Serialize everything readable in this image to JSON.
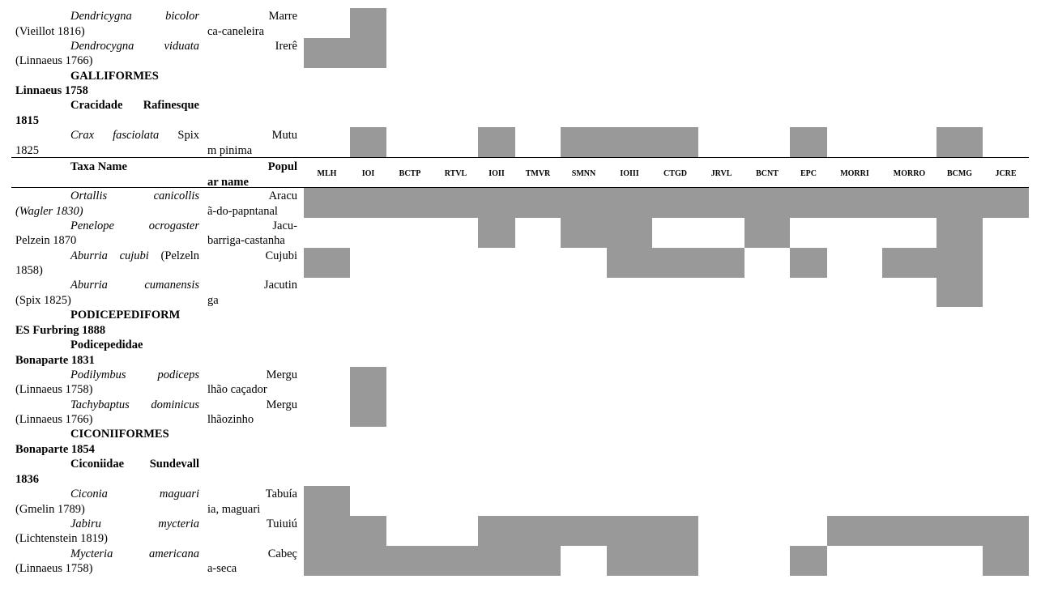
{
  "columns": [
    "MLH",
    "IOI",
    "BCTP",
    "RTVL",
    "IOII",
    "TMVR",
    "SMNN",
    "IOIII",
    "CTGD",
    "JRVL",
    "BCNT",
    "EPC",
    "MORRI",
    "MORRO",
    "BCMG",
    "JCRE"
  ],
  "header": {
    "taxa_name": "Taxa Name",
    "popular_l1": "Popul",
    "popular_l2": "ar name"
  },
  "rows_top": [
    {
      "kind": "species",
      "taxa_l1": "Dendricygna bicolor",
      "taxa_auth1": "",
      "taxa_l2": "(Vieillot 1816)",
      "pop_l1": "Marre",
      "pop_l2": "ca-caneleira",
      "presence": [
        "IOI"
      ]
    },
    {
      "kind": "species",
      "taxa_l1": "Dendrocygna viduata",
      "taxa_auth1": "",
      "taxa_l2": "(Linnaeus 1766)",
      "pop_l1": "Irerê",
      "pop_l2": "",
      "presence": [
        "MLH",
        "IOI"
      ]
    },
    {
      "kind": "group",
      "taxa_l1": "GALLIFORMES",
      "taxa_l2": "Linnaeus 1758"
    },
    {
      "kind": "group",
      "taxa_l1": "Cracidade Rafinesque",
      "taxa_l2": "1815"
    },
    {
      "kind": "species",
      "taxa_l1": "Crax fasciolata",
      "taxa_auth1": "Spix",
      "taxa_l2": "1825",
      "pop_l1": "Mutu",
      "pop_l2": "m pinima",
      "presence": [
        "IOI",
        "IOII",
        "SMNN",
        "IOIII",
        "CTGD",
        "EPC",
        "BCMG"
      ]
    }
  ],
  "rows_bottom": [
    {
      "kind": "species",
      "taxa_l1": "Ortallis canicollis",
      "taxa_auth1": "",
      "taxa_l2": "(Wagler 1830)",
      "l2_italic": true,
      "pop_l1": "Aracu",
      "pop_l2": "ã-do-papntanal",
      "presence": [
        "MLH",
        "IOI",
        "BCTP",
        "RTVL",
        "IOII",
        "TMVR",
        "SMNN",
        "IOIII",
        "CTGD",
        "JRVL",
        "BCNT",
        "EPC",
        "MORRI",
        "MORRO",
        "BCMG",
        "JCRE"
      ]
    },
    {
      "kind": "species",
      "taxa_l1": "Penelope ocrogaster",
      "taxa_auth1": "",
      "taxa_l2": "Pelzein 1870",
      "pop_l1": "Jacu-",
      "pop_l2": "barriga-castanha",
      "presence": [
        "IOII",
        "SMNN",
        "IOIII",
        "BCNT",
        "BCMG"
      ]
    },
    {
      "kind": "species",
      "taxa_l1": "Aburria cujubi",
      "taxa_auth1": "(Pelzeln",
      "taxa_l2": "1858)",
      "pop_l1": "Cujubi",
      "pop_l2": "",
      "presence": [
        "MLH",
        "IOIII",
        "CTGD",
        "JRVL",
        "EPC",
        "MORRO",
        "BCMG"
      ]
    },
    {
      "kind": "species",
      "taxa_l1": "Aburria cumanensis",
      "taxa_auth1": "",
      "taxa_l2": "(Spix 1825)",
      "l2_italic_paren": true,
      "pop_l1": "Jacutin",
      "pop_l2": "ga",
      "presence": [
        "BCMG"
      ]
    },
    {
      "kind": "group",
      "taxa_l1": "PODICEPEDIFORM",
      "taxa_l2": "ES Furbring 1888"
    },
    {
      "kind": "group",
      "taxa_l1": "Podicepedidae",
      "taxa_l2": "Bonaparte 1831"
    },
    {
      "kind": "species",
      "taxa_l1": "Podilymbus podiceps",
      "taxa_auth1": "",
      "taxa_l2": "(Linnaeus 1758)",
      "pop_l1": "Mergu",
      "pop_l2": "lhão caçador",
      "presence": [
        "IOI"
      ]
    },
    {
      "kind": "species",
      "taxa_l1": "Tachybaptus dominicus",
      "taxa_auth1": "",
      "taxa_l2": "(Linnaeus 1766)",
      "pop_l1": "Mergu",
      "pop_l2": "lhãozinho",
      "presence": [
        "IOI"
      ]
    },
    {
      "kind": "group",
      "taxa_l1": "CICONIIFORMES",
      "taxa_l2": "Bonaparte 1854"
    },
    {
      "kind": "group",
      "taxa_l1": "Ciconiidae Sundevall",
      "taxa_l2": "1836"
    },
    {
      "kind": "species",
      "taxa_l1": "Ciconia maguari",
      "taxa_auth1": "",
      "taxa_l2": "(Gmelin 1789)",
      "pop_l1": "Tabuía",
      "pop_l2": "ia, maguari",
      "presence": [
        "MLH"
      ]
    },
    {
      "kind": "species",
      "taxa_l1": "Jabiru mycteria",
      "taxa_auth1": "",
      "taxa_l2": "(Lichtenstein 1819)",
      "pop_l1": "Tuiuiú",
      "pop_l2": "",
      "presence": [
        "MLH",
        "IOI",
        "IOII",
        "TMVR",
        "SMNN",
        "IOIII",
        "CTGD",
        "MORRI",
        "MORRO",
        "BCMG",
        "JCRE"
      ]
    },
    {
      "kind": "species",
      "taxa_l1": "Mycteria americana",
      "taxa_auth1": "",
      "taxa_l2": "(Linnaeus 1758)",
      "pop_l1": "Cabeç",
      "pop_l2": "a-seca",
      "presence": [
        "MLH",
        "IOI",
        "BCTP",
        "RTVL",
        "IOII",
        "TMVR",
        "IOIII",
        "CTGD",
        "EPC",
        "JCRE"
      ]
    }
  ],
  "cell_color": "#999999"
}
